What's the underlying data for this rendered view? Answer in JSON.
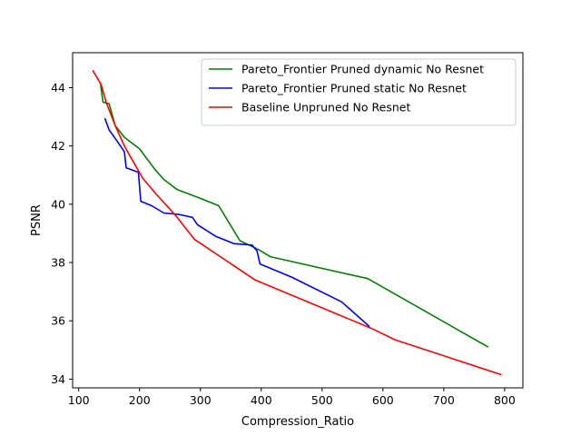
{
  "chart_data": {
    "type": "line",
    "xlabel": "Compression_Ratio",
    "ylabel": "PSNR",
    "xlim": [
      90,
      830
    ],
    "ylim": [
      33.7,
      45.2
    ],
    "xticks": [
      100,
      200,
      300,
      400,
      500,
      600,
      700,
      800
    ],
    "yticks": [
      34,
      36,
      38,
      40,
      42,
      44
    ],
    "grid": false,
    "legend_position": "top-right",
    "series": [
      {
        "name": "Pareto_Frontier Pruned dynamic No Resnet",
        "color": "#008000",
        "points": [
          [
            136,
            44.1
          ],
          [
            140,
            43.5
          ],
          [
            150,
            43.45
          ],
          [
            160,
            42.7
          ],
          [
            175,
            42.3
          ],
          [
            200,
            41.9
          ],
          [
            225,
            41.2
          ],
          [
            240,
            40.85
          ],
          [
            262,
            40.5
          ],
          [
            300,
            40.2
          ],
          [
            330,
            39.95
          ],
          [
            365,
            38.75
          ],
          [
            380,
            38.6
          ],
          [
            395,
            38.45
          ],
          [
            415,
            38.2
          ],
          [
            575,
            37.45
          ],
          [
            773,
            35.1
          ]
        ]
      },
      {
        "name": "Pareto_Frontier Pruned static No Resnet",
        "color": "#0000ff",
        "points": [
          [
            143,
            42.95
          ],
          [
            150,
            42.55
          ],
          [
            162,
            42.2
          ],
          [
            175,
            41.8
          ],
          [
            178,
            41.25
          ],
          [
            198,
            41.1
          ],
          [
            202,
            40.1
          ],
          [
            220,
            39.95
          ],
          [
            240,
            39.7
          ],
          [
            265,
            39.65
          ],
          [
            287,
            39.55
          ],
          [
            295,
            39.3
          ],
          [
            325,
            38.9
          ],
          [
            355,
            38.65
          ],
          [
            385,
            38.6
          ],
          [
            393,
            38.4
          ],
          [
            398,
            37.95
          ],
          [
            450,
            37.5
          ],
          [
            532,
            36.65
          ],
          [
            578,
            35.8
          ]
        ]
      },
      {
        "name": "Baseline Unpruned No Resnet",
        "color": "#ff0000",
        "points": [
          [
            123,
            44.6
          ],
          [
            137,
            44.1
          ],
          [
            145,
            43.5
          ],
          [
            160,
            42.7
          ],
          [
            175,
            42.0
          ],
          [
            190,
            41.45
          ],
          [
            205,
            40.9
          ],
          [
            225,
            40.4
          ],
          [
            260,
            39.6
          ],
          [
            290,
            38.8
          ],
          [
            390,
            37.4
          ],
          [
            580,
            35.75
          ],
          [
            620,
            35.35
          ],
          [
            795,
            34.15
          ]
        ]
      }
    ]
  }
}
